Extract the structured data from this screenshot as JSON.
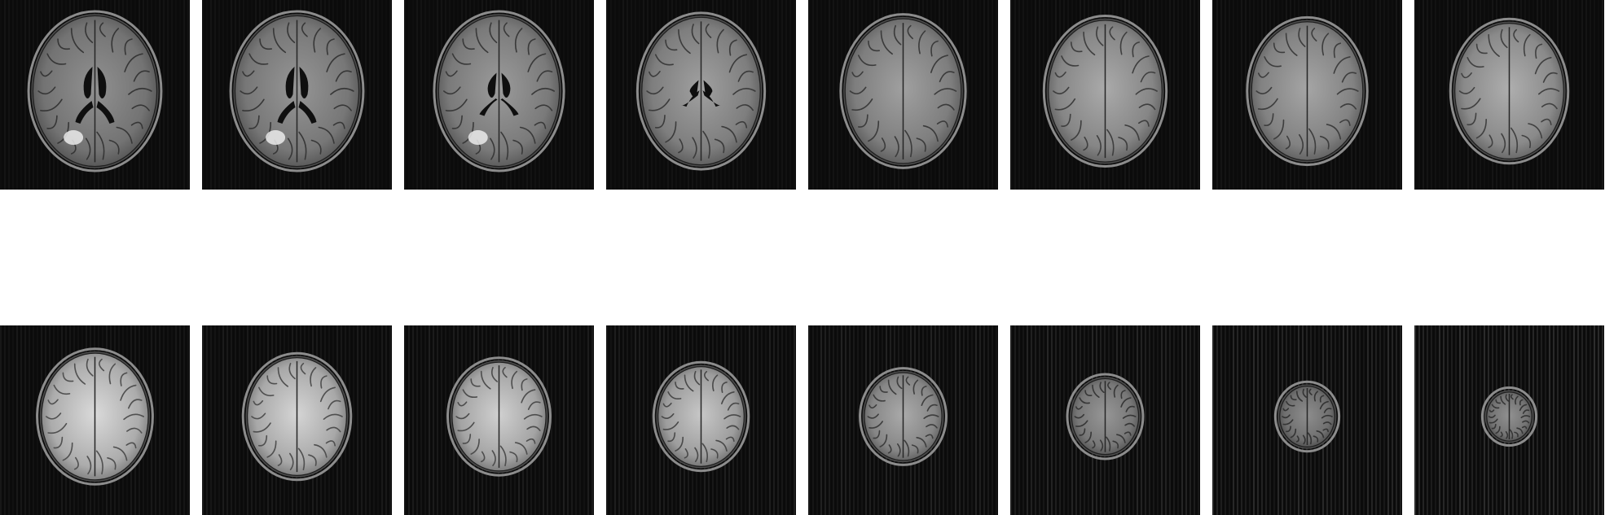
{
  "figure": {
    "background": "#ffffff",
    "tile_background": "#0b0b0b",
    "rows": [
      {
        "name": "top-row",
        "slices": [
          {
            "label": "",
            "scale": 1.0,
            "aspect": 0.82,
            "brightness": 0.6,
            "ventricles": "large",
            "lesion": true,
            "noise": 0.05
          },
          {
            "label": "",
            "scale": 1.0,
            "aspect": 0.82,
            "brightness": 0.62,
            "ventricles": "large",
            "lesion": true,
            "noise": 0.05
          },
          {
            "label": "",
            "scale": 1.0,
            "aspect": 0.8,
            "brightness": 0.64,
            "ventricles": "medium",
            "lesion": true,
            "noise": 0.05
          },
          {
            "label": "",
            "scale": 0.98,
            "aspect": 0.8,
            "brightness": 0.66,
            "ventricles": "small",
            "lesion": false,
            "noise": 0.05
          },
          {
            "label": "",
            "scale": 0.96,
            "aspect": 0.8,
            "brightness": 0.66,
            "ventricles": "none",
            "lesion": false,
            "noise": 0.05
          },
          {
            "label": "",
            "scale": 0.94,
            "aspect": 0.8,
            "brightness": 0.7,
            "ventricles": "none",
            "lesion": false,
            "noise": 0.06
          },
          {
            "label": "",
            "scale": 0.92,
            "aspect": 0.8,
            "brightness": 0.68,
            "ventricles": "none",
            "lesion": false,
            "noise": 0.06
          },
          {
            "label": "",
            "scale": 0.9,
            "aspect": 0.8,
            "brightness": 0.72,
            "ventricles": "none",
            "lesion": false,
            "noise": 0.06
          }
        ]
      },
      {
        "name": "bottom-row",
        "slices": [
          {
            "label": "",
            "scale": 0.84,
            "aspect": 0.84,
            "brightness": 0.9,
            "ventricles": "none",
            "lesion": false,
            "noise": 0.08
          },
          {
            "label": "",
            "scale": 0.78,
            "aspect": 0.84,
            "brightness": 0.88,
            "ventricles": "none",
            "lesion": false,
            "noise": 0.09
          },
          {
            "label": "",
            "scale": 0.72,
            "aspect": 0.86,
            "brightness": 0.86,
            "ventricles": "none",
            "lesion": false,
            "noise": 0.1
          },
          {
            "label": "",
            "scale": 0.66,
            "aspect": 0.86,
            "brightness": 0.82,
            "ventricles": "none",
            "lesion": false,
            "noise": 0.11
          },
          {
            "label": "",
            "scale": 0.58,
            "aspect": 0.88,
            "brightness": 0.7,
            "ventricles": "none",
            "lesion": false,
            "noise": 0.13
          },
          {
            "label": "",
            "scale": 0.5,
            "aspect": 0.88,
            "brightness": 0.62,
            "ventricles": "none",
            "lesion": false,
            "noise": 0.15
          },
          {
            "label": "",
            "scale": 0.4,
            "aspect": 0.9,
            "brightness": 0.58,
            "ventricles": "none",
            "lesion": false,
            "noise": 0.17
          },
          {
            "label": "",
            "scale": 0.32,
            "aspect": 0.92,
            "brightness": 0.6,
            "ventricles": "none",
            "lesion": false,
            "noise": 0.19
          }
        ]
      }
    ]
  }
}
